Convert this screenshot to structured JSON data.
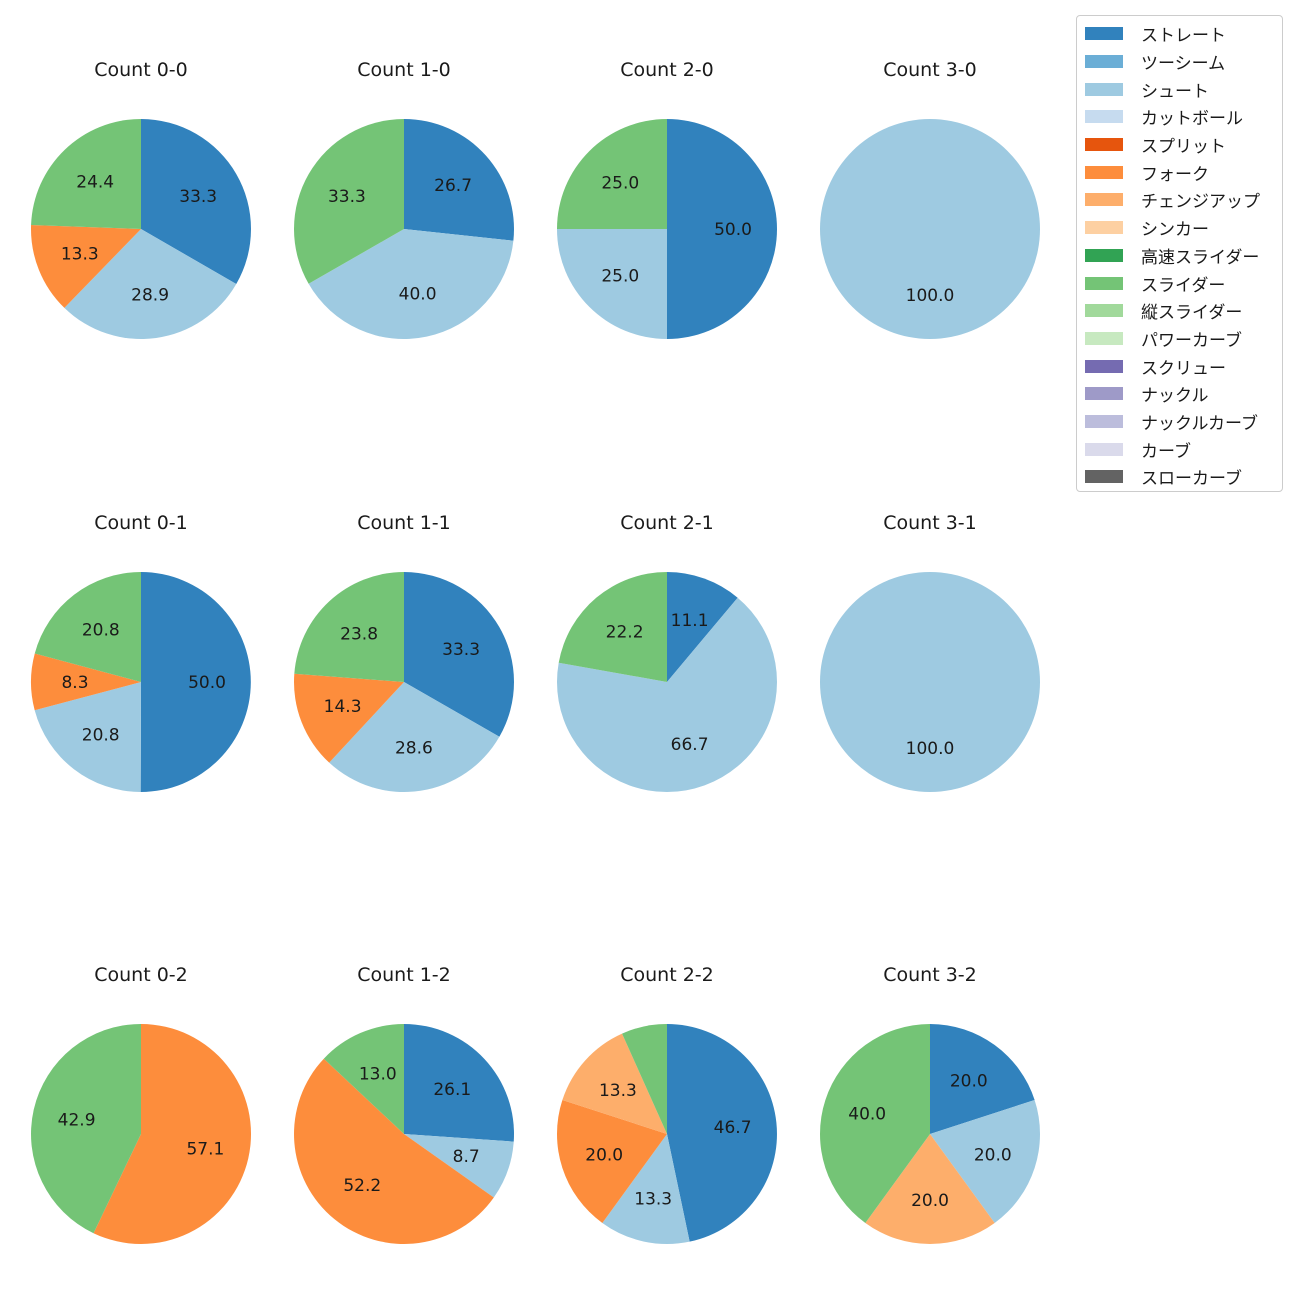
{
  "legend": {
    "items": [
      {
        "label": "ストレート",
        "color": "#3182bd"
      },
      {
        "label": "ツーシーム",
        "color": "#6baed6"
      },
      {
        "label": "シュート",
        "color": "#9ecae1"
      },
      {
        "label": "カットボール",
        "color": "#c6dbef"
      },
      {
        "label": "スプリット",
        "color": "#e6550d"
      },
      {
        "label": "フォーク",
        "color": "#fd8d3c"
      },
      {
        "label": "チェンジアップ",
        "color": "#fdae6b"
      },
      {
        "label": "シンカー",
        "color": "#fdd0a2"
      },
      {
        "label": "高速スライダー",
        "color": "#31a354"
      },
      {
        "label": "スライダー",
        "color": "#74c476"
      },
      {
        "label": "縦スライダー",
        "color": "#a1d99b"
      },
      {
        "label": "パワーカーブ",
        "color": "#c7e9c0"
      },
      {
        "label": "スクリュー",
        "color": "#756bb1"
      },
      {
        "label": "ナックル",
        "color": "#9e9ac8"
      },
      {
        "label": "ナックルカーブ",
        "color": "#bcbddc"
      },
      {
        "label": "カーブ",
        "color": "#dadaeb"
      },
      {
        "label": "スローカーブ",
        "color": "#636363"
      }
    ]
  },
  "chart_data": [
    {
      "type": "pie",
      "title": "Count 0-0",
      "slices": [
        {
          "label": "ストレート",
          "value": 33.3,
          "color": "#3182bd"
        },
        {
          "label": "シュート",
          "value": 28.9,
          "color": "#9ecae1"
        },
        {
          "label": "フォーク",
          "value": 13.3,
          "color": "#fd8d3c"
        },
        {
          "label": "スライダー",
          "value": 24.4,
          "color": "#74c476"
        }
      ]
    },
    {
      "type": "pie",
      "title": "Count 1-0",
      "slices": [
        {
          "label": "ストレート",
          "value": 26.7,
          "color": "#3182bd"
        },
        {
          "label": "シュート",
          "value": 40.0,
          "color": "#9ecae1"
        },
        {
          "label": "スライダー",
          "value": 33.3,
          "color": "#74c476"
        }
      ]
    },
    {
      "type": "pie",
      "title": "Count 2-0",
      "slices": [
        {
          "label": "ストレート",
          "value": 50.0,
          "color": "#3182bd"
        },
        {
          "label": "シュート",
          "value": 25.0,
          "color": "#9ecae1"
        },
        {
          "label": "スライダー",
          "value": 25.0,
          "color": "#74c476"
        }
      ]
    },
    {
      "type": "pie",
      "title": "Count 3-0",
      "slices": [
        {
          "label": "シュート",
          "value": 100.0,
          "color": "#9ecae1"
        }
      ]
    },
    {
      "type": "pie",
      "title": "Count 0-1",
      "slices": [
        {
          "label": "ストレート",
          "value": 50.0,
          "color": "#3182bd"
        },
        {
          "label": "シュート",
          "value": 20.8,
          "color": "#9ecae1"
        },
        {
          "label": "フォーク",
          "value": 8.3,
          "color": "#fd8d3c"
        },
        {
          "label": "スライダー",
          "value": 20.8,
          "color": "#74c476"
        }
      ]
    },
    {
      "type": "pie",
      "title": "Count 1-1",
      "slices": [
        {
          "label": "ストレート",
          "value": 33.3,
          "color": "#3182bd"
        },
        {
          "label": "シュート",
          "value": 28.6,
          "color": "#9ecae1"
        },
        {
          "label": "フォーク",
          "value": 14.3,
          "color": "#fd8d3c"
        },
        {
          "label": "スライダー",
          "value": 23.8,
          "color": "#74c476"
        }
      ]
    },
    {
      "type": "pie",
      "title": "Count 2-1",
      "slices": [
        {
          "label": "ストレート",
          "value": 11.1,
          "color": "#3182bd"
        },
        {
          "label": "シュート",
          "value": 66.7,
          "color": "#9ecae1"
        },
        {
          "label": "スライダー",
          "value": 22.2,
          "color": "#74c476"
        }
      ]
    },
    {
      "type": "pie",
      "title": "Count 3-1",
      "slices": [
        {
          "label": "シュート",
          "value": 100.0,
          "color": "#9ecae1"
        }
      ]
    },
    {
      "type": "pie",
      "title": "Count 0-2",
      "slices": [
        {
          "label": "フォーク",
          "value": 57.1,
          "color": "#fd8d3c"
        },
        {
          "label": "スライダー",
          "value": 42.9,
          "color": "#74c476"
        }
      ]
    },
    {
      "type": "pie",
      "title": "Count 1-2",
      "slices": [
        {
          "label": "ストレート",
          "value": 26.1,
          "color": "#3182bd"
        },
        {
          "label": "シュート",
          "value": 8.7,
          "color": "#9ecae1"
        },
        {
          "label": "フォーク",
          "value": 52.2,
          "color": "#fd8d3c"
        },
        {
          "label": "スライダー",
          "value": 13.0,
          "color": "#74c476"
        }
      ]
    },
    {
      "type": "pie",
      "title": "Count 2-2",
      "slices": [
        {
          "label": "ストレート",
          "value": 46.7,
          "color": "#3182bd"
        },
        {
          "label": "シュート",
          "value": 13.3,
          "color": "#9ecae1"
        },
        {
          "label": "フォーク",
          "value": 20.0,
          "color": "#fd8d3c"
        },
        {
          "label": "チェンジアップ",
          "value": 13.3,
          "color": "#fdae6b"
        },
        {
          "label": "スライダー",
          "value": 6.7,
          "color": "#74c476",
          "show_label": false
        }
      ]
    },
    {
      "type": "pie",
      "title": "Count 3-2",
      "slices": [
        {
          "label": "ストレート",
          "value": 20.0,
          "color": "#3182bd"
        },
        {
          "label": "シュート",
          "value": 20.0,
          "color": "#9ecae1"
        },
        {
          "label": "チェンジアップ",
          "value": 20.0,
          "color": "#fdae6b"
        },
        {
          "label": "スライダー",
          "value": 40.0,
          "color": "#74c476"
        }
      ]
    }
  ]
}
